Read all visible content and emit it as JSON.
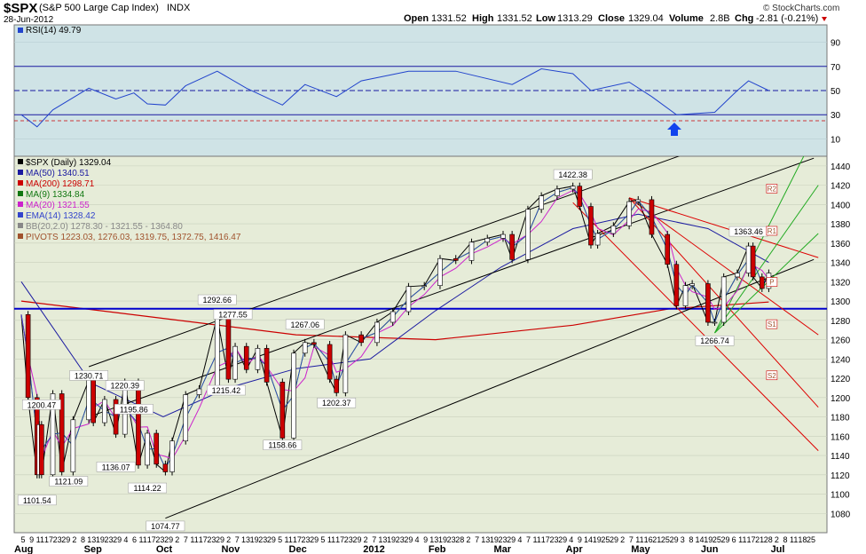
{
  "header": {
    "symbol": "$SPX",
    "name": "(S&P 500 Large Cap Index)",
    "exchange": "INDX",
    "date": "28-Jun-2012",
    "brand": "© StockCharts.com",
    "open_label": "Open",
    "open": "1331.52",
    "high_label": "High",
    "high": "1331.52",
    "low_label": "Low",
    "low": "1313.29",
    "close_label": "Close",
    "close": "1329.04",
    "volume_label": "Volume",
    "volume": "2.8B",
    "chg_label": "Chg",
    "chg": "-2.81 (-0.21%)"
  },
  "colors": {
    "bg_rsi": "#cfe3e6",
    "bg_price": "#e6ecd8",
    "candle_up": "#ffffff",
    "candle_down": "#cc0000",
    "ma50": "#1a1aa0",
    "ma200": "#cc0000",
    "ma9": "#117711",
    "ma20": "#cc22cc",
    "ema14": "#3344cc",
    "bb": "#909090",
    "pivots": "#a0522d",
    "rsi_line": "#2244cc",
    "hline": "#0000cc",
    "channel": "#000000",
    "fork_red": "#dd0000",
    "fork_green": "#22aa22"
  },
  "rsi_panel": {
    "label": "RSI(14) 49.79",
    "levels": [
      90,
      70,
      50,
      30,
      10
    ]
  },
  "legend": [
    {
      "text": "$SPX (Daily) 1329.04",
      "color": "#000000"
    },
    {
      "text": "MA(50) 1340.51",
      "color": "#1a1aa0"
    },
    {
      "text": "MA(200) 1298.71",
      "color": "#cc0000"
    },
    {
      "text": "MA(9) 1334.84",
      "color": "#117711"
    },
    {
      "text": "MA(20) 1321.55",
      "color": "#cc22cc"
    },
    {
      "text": "EMA(14) 1328.42",
      "color": "#3344cc"
    },
    {
      "text": "BB(20,2.0) 1278.30 - 1321.55 - 1364.80",
      "color": "#888888"
    },
    {
      "text": "PIVOTS 1223.03, 1276.03, 1319.75, 1372.75, 1416.47",
      "color": "#a0522d"
    }
  ],
  "pivot_labels": [
    "R2",
    "R1",
    "P",
    "S1",
    "S2"
  ],
  "x_axis": {
    "day_ticks": [
      "5",
      "9",
      "11",
      "17",
      "23",
      "29",
      "2",
      "8",
      "13",
      "19",
      "23",
      "29",
      "4",
      "6",
      "11",
      "17",
      "23",
      "29",
      "2",
      "7",
      "11",
      "17",
      "23",
      "29",
      "2",
      "7",
      "13",
      "19",
      "23",
      "29",
      "5",
      "11",
      "17",
      "23",
      "29",
      "5",
      "11",
      "17",
      "23",
      "29",
      "2",
      "7",
      "13",
      "19",
      "23",
      "29",
      "4",
      "9",
      "13",
      "19",
      "23",
      "28",
      "2",
      "7",
      "13",
      "19",
      "23",
      "29",
      "4",
      "7",
      "11",
      "17",
      "23",
      "29",
      "4",
      "9",
      "14",
      "19",
      "25",
      "29",
      "2",
      "7",
      "11",
      "16",
      "21",
      "25",
      "29",
      "3",
      "8",
      "14",
      "19",
      "25",
      "29",
      "6",
      "11",
      "17",
      "21",
      "28",
      "2",
      "8",
      "11",
      "18",
      "25"
    ],
    "month_labels": [
      "Aug",
      "Sep",
      "Oct",
      "Nov",
      "Dec",
      "2012",
      "Feb",
      "Mar",
      "Apr",
      "May",
      "Jun",
      "Jul"
    ]
  },
  "chart_data": {
    "type": "candlestick",
    "title": "$SPX (S&P 500 Large Cap Index) INDX",
    "ylim": [
      1060,
      1450
    ],
    "y_ticks": [
      1080,
      1100,
      1120,
      1140,
      1160,
      1180,
      1200,
      1220,
      1240,
      1260,
      1280,
      1300,
      1320,
      1340,
      1360,
      1380,
      1400,
      1420,
      1440
    ],
    "horizontal_line": 1292,
    "annotations": [
      {
        "date": "2011-08-08",
        "value": 1101.54,
        "label": "1101.54"
      },
      {
        "date": "2011-08-10",
        "value": 1200.47,
        "label": "1200.47"
      },
      {
        "date": "2011-08-22",
        "value": 1121.09,
        "label": "1121.09"
      },
      {
        "date": "2011-08-31",
        "value": 1230.71,
        "label": "1230.71"
      },
      {
        "date": "2011-09-12",
        "value": 1136.07,
        "label": "1136.07"
      },
      {
        "date": "2011-09-16",
        "value": 1220.39,
        "label": "1220.39"
      },
      {
        "date": "2011-09-20",
        "value": 1195.86,
        "label": "1195.86"
      },
      {
        "date": "2011-09-26",
        "value": 1114.22,
        "label": "1114.22"
      },
      {
        "date": "2011-10-04",
        "value": 1074.77,
        "label": "1074.77"
      },
      {
        "date": "2011-10-27",
        "value": 1292.66,
        "label": "1292.66"
      },
      {
        "date": "2011-10-31",
        "value": 1215.42,
        "label": "1215.42"
      },
      {
        "date": "2011-11-03",
        "value": 1277.55,
        "label": "1277.55"
      },
      {
        "date": "2011-11-25",
        "value": 1158.66,
        "label": "1158.66"
      },
      {
        "date": "2011-12-05",
        "value": 1267.06,
        "label": "1267.06"
      },
      {
        "date": "2011-12-19",
        "value": 1202.37,
        "label": "1202.37"
      },
      {
        "date": "2012-04-02",
        "value": 1422.38,
        "label": "1422.38"
      },
      {
        "date": "2012-06-04",
        "value": 1266.74,
        "label": "1266.74"
      },
      {
        "date": "2012-06-19",
        "value": 1363.46,
        "label": "1363.46"
      }
    ],
    "pivots": [
      {
        "name": "R2",
        "value": 1416.47
      },
      {
        "name": "R1",
        "value": 1372.75
      },
      {
        "name": "P",
        "value": 1319.75
      },
      {
        "name": "S1",
        "value": 1276.03
      },
      {
        "name": "S2",
        "value": 1223.03
      }
    ],
    "close_path": [
      [
        "2011-08-01",
        1286
      ],
      [
        "2011-08-04",
        1200
      ],
      [
        "2011-08-08",
        1120
      ],
      [
        "2011-08-09",
        1172
      ],
      [
        "2011-08-10",
        1120
      ],
      [
        "2011-08-15",
        1204
      ],
      [
        "2011-08-19",
        1123
      ],
      [
        "2011-08-24",
        1177
      ],
      [
        "2011-08-31",
        1218
      ],
      [
        "2011-09-02",
        1174
      ],
      [
        "2011-09-07",
        1198
      ],
      [
        "2011-09-12",
        1162
      ],
      [
        "2011-09-16",
        1216
      ],
      [
        "2011-09-22",
        1130
      ],
      [
        "2011-09-26",
        1163
      ],
      [
        "2011-09-30",
        1131
      ],
      [
        "2011-10-04",
        1123
      ],
      [
        "2011-10-07",
        1155
      ],
      [
        "2011-10-13",
        1203
      ],
      [
        "2011-10-19",
        1209
      ],
      [
        "2011-10-27",
        1284
      ],
      [
        "2011-11-01",
        1219
      ],
      [
        "2011-11-04",
        1253
      ],
      [
        "2011-11-09",
        1229
      ],
      [
        "2011-11-14",
        1251
      ],
      [
        "2011-11-18",
        1216
      ],
      [
        "2011-11-25",
        1158
      ],
      [
        "2011-11-30",
        1246
      ],
      [
        "2011-12-05",
        1257
      ],
      [
        "2011-12-09",
        1255
      ],
      [
        "2011-12-16",
        1219
      ],
      [
        "2011-12-19",
        1205
      ],
      [
        "2011-12-23",
        1265
      ],
      [
        "2011-12-30",
        1257
      ],
      [
        "2012-01-06",
        1278
      ],
      [
        "2012-01-13",
        1289
      ],
      [
        "2012-01-20",
        1315
      ],
      [
        "2012-01-27",
        1316
      ],
      [
        "2012-02-03",
        1344
      ],
      [
        "2012-02-10",
        1342
      ],
      [
        "2012-02-17",
        1361
      ],
      [
        "2012-02-24",
        1365
      ],
      [
        "2012-03-02",
        1369
      ],
      [
        "2012-03-06",
        1343
      ],
      [
        "2012-03-13",
        1395
      ],
      [
        "2012-03-19",
        1409
      ],
      [
        "2012-03-26",
        1416
      ],
      [
        "2012-04-02",
        1419
      ],
      [
        "2012-04-05",
        1398
      ],
      [
        "2012-04-10",
        1358
      ],
      [
        "2012-04-13",
        1370
      ],
      [
        "2012-04-20",
        1378
      ],
      [
        "2012-04-27",
        1403
      ],
      [
        "2012-05-01",
        1405
      ],
      [
        "2012-05-07",
        1369
      ],
      [
        "2012-05-14",
        1338
      ],
      [
        "2012-05-18",
        1295
      ],
      [
        "2012-05-22",
        1316
      ],
      [
        "2012-05-25",
        1318
      ],
      [
        "2012-06-01",
        1278
      ],
      [
        "2012-06-04",
        1278
      ],
      [
        "2012-06-08",
        1325
      ],
      [
        "2012-06-14",
        1329
      ],
      [
        "2012-06-19",
        1357
      ],
      [
        "2012-06-21",
        1325
      ],
      [
        "2012-06-25",
        1313
      ],
      [
        "2012-06-28",
        1329
      ]
    ],
    "moving_averages": {
      "MA(50)": [
        [
          "2011-08-01",
          1320
        ],
        [
          "2011-09-01",
          1215
        ],
        [
          "2011-10-03",
          1180
        ],
        [
          "2011-11-01",
          1210
        ],
        [
          "2011-12-01",
          1230
        ],
        [
          "2012-01-03",
          1240
        ],
        [
          "2012-02-01",
          1290
        ],
        [
          "2012-03-01",
          1335
        ],
        [
          "2012-04-02",
          1375
        ],
        [
          "2012-05-01",
          1390
        ],
        [
          "2012-06-01",
          1375
        ],
        [
          "2012-06-28",
          1340
        ]
      ],
      "MA(200)": [
        [
          "2011-08-01",
          1300
        ],
        [
          "2011-10-03",
          1282
        ],
        [
          "2011-12-01",
          1265
        ],
        [
          "2012-02-01",
          1260
        ],
        [
          "2012-04-02",
          1275
        ],
        [
          "2012-05-15",
          1292
        ],
        [
          "2012-06-28",
          1299
        ]
      ]
    },
    "channels": [
      {
        "name": "upper-channel",
        "points": [
          [
            "2011-08-31",
            1232
          ],
          [
            "2012-07-18",
            1500
          ]
        ]
      },
      {
        "name": "middle-channel",
        "points": [
          [
            "2011-08-31",
            1180
          ],
          [
            "2012-07-18",
            1448
          ]
        ]
      },
      {
        "name": "lower-channel",
        "points": [
          [
            "2011-10-04",
            1075
          ],
          [
            "2012-07-18",
            1343
          ]
        ]
      }
    ],
    "rsi": {
      "value": 49.79,
      "levels": [
        90,
        70,
        50,
        30,
        10
      ],
      "series": [
        [
          "2011-08-01",
          30
        ],
        [
          "2011-08-08",
          20
        ],
        [
          "2011-08-15",
          34
        ],
        [
          "2011-08-31",
          52
        ],
        [
          "2011-09-12",
          43
        ],
        [
          "2011-09-20",
          48
        ],
        [
          "2011-09-26",
          39
        ],
        [
          "2011-10-04",
          38
        ],
        [
          "2011-10-13",
          54
        ],
        [
          "2011-10-27",
          66
        ],
        [
          "2011-11-09",
          52
        ],
        [
          "2011-11-25",
          38
        ],
        [
          "2011-12-05",
          55
        ],
        [
          "2011-12-19",
          45
        ],
        [
          "2011-12-30",
          58
        ],
        [
          "2012-01-20",
          66
        ],
        [
          "2012-02-10",
          66
        ],
        [
          "2012-03-06",
          55
        ],
        [
          "2012-03-19",
          68
        ],
        [
          "2012-04-02",
          64
        ],
        [
          "2012-04-10",
          50
        ],
        [
          "2012-04-27",
          57
        ],
        [
          "2012-05-07",
          45
        ],
        [
          "2012-05-18",
          30
        ],
        [
          "2012-06-04",
          32
        ],
        [
          "2012-06-14",
          50
        ],
        [
          "2012-06-19",
          58
        ],
        [
          "2012-06-28",
          50
        ]
      ]
    },
    "fork_lines_red": [
      {
        "points": [
          [
            "2012-04-27",
            1407
          ],
          [
            "2012-07-20",
            1190
          ]
        ]
      },
      {
        "points": [
          [
            "2012-04-27",
            1407
          ],
          [
            "2012-07-20",
            1265
          ]
        ]
      },
      {
        "points": [
          [
            "2012-04-27",
            1407
          ],
          [
            "2012-07-20",
            1345
          ]
        ]
      },
      {
        "points": [
          [
            "2012-04-02",
            1402
          ],
          [
            "2012-07-20",
            1145
          ]
        ]
      }
    ],
    "fork_lines_green": [
      {
        "points": [
          [
            "2012-06-04",
            1267
          ],
          [
            "2012-07-20",
            1480
          ]
        ]
      },
      {
        "points": [
          [
            "2012-06-04",
            1267
          ],
          [
            "2012-07-20",
            1420
          ]
        ]
      },
      {
        "points": [
          [
            "2012-06-04",
            1267
          ],
          [
            "2012-07-20",
            1370
          ]
        ]
      }
    ]
  }
}
